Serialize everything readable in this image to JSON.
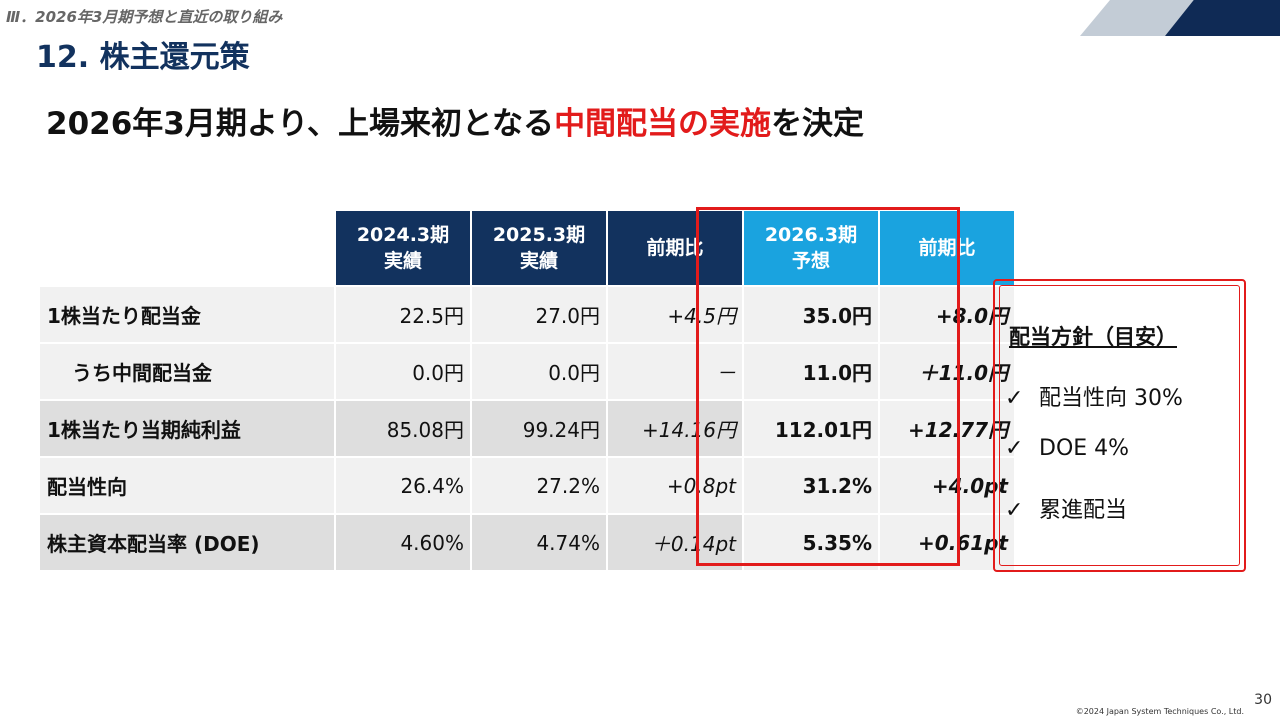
{
  "header": {
    "section_label": "Ⅲ．2026年3月期予想と直近の取り組み",
    "page_title": "12. 株主還元策"
  },
  "headline": {
    "part1": "2026年3月期より、上場来初となる",
    "highlight": "中間配当の実施",
    "part2": "を決定"
  },
  "table": {
    "columns": [
      {
        "line1": "2024.3期",
        "line2": "実績"
      },
      {
        "line1": "2025.3期",
        "line2": "実績"
      },
      {
        "line1": "前期比",
        "line2": ""
      },
      {
        "line1": "2026.3期",
        "line2": "予想"
      },
      {
        "line1": "前期比",
        "line2": ""
      }
    ],
    "rows": [
      {
        "label": "1株当たり配当金",
        "values": [
          "22.5円",
          "27.0円",
          "+4.5円",
          "35.0円",
          "+8.0円"
        ]
      },
      {
        "label": "うち中間配当金",
        "values": [
          "0.0円",
          "0.0円",
          "－",
          "11.0円",
          "＋11.0円"
        ]
      },
      {
        "label": "1株当たり当期純利益",
        "values": [
          "85.08円",
          "99.24円",
          "+14.16円",
          "112.01円",
          "+12.77円"
        ]
      },
      {
        "label": "配当性向",
        "values": [
          "26.4%",
          "27.2%",
          "+0.8pt",
          "31.2%",
          "+4.0pt"
        ]
      },
      {
        "label": "株主資本配当率 (DOE)",
        "values": [
          "4.60%",
          "4.74%",
          "＋0.14pt",
          "5.35%",
          "+0.61pt"
        ]
      }
    ]
  },
  "policy": {
    "title": "配当方針（目安）",
    "check": "✓",
    "items": [
      "配当性向 30%",
      "DOE 4%",
      "累進配当"
    ]
  },
  "footer": {
    "copyright": "©2024 Japan System Techniques Co., Ltd.",
    "page_number": "30"
  },
  "colors": {
    "navy": "#12325e",
    "forecast_blue": "#1aa3df",
    "highlight_red": "#e21b1b"
  }
}
